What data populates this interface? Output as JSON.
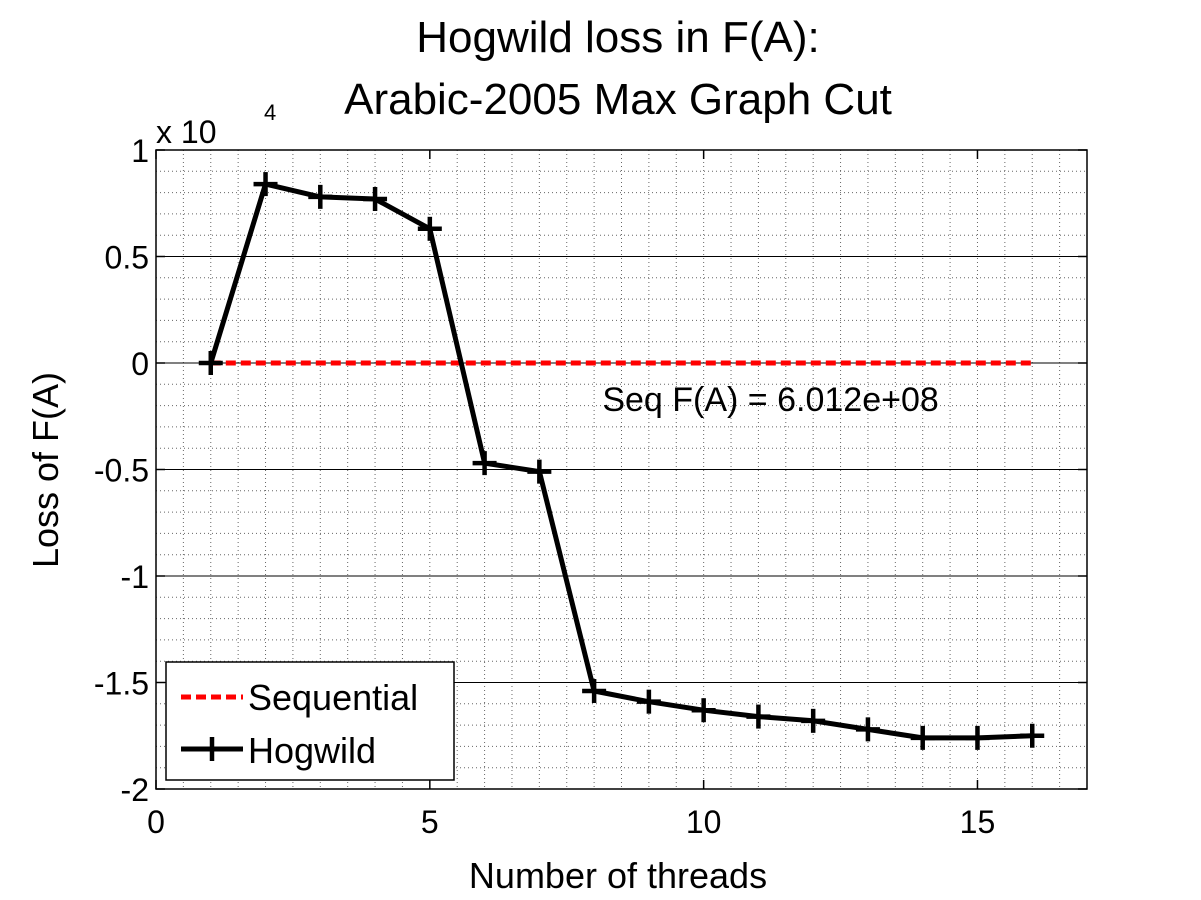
{
  "chart_data": {
    "type": "line",
    "title": [
      "Hogwild loss in F(A):",
      "Arabic-2005 Max Graph Cut"
    ],
    "xlabel": "Number of threads",
    "ylabel": "Loss of F(A)",
    "y_multiplier": {
      "base": "x 10",
      "exponent": "4"
    },
    "xlim": [
      0,
      17
    ],
    "ylim": [
      -2,
      1
    ],
    "xticks": [
      0,
      5,
      10,
      15
    ],
    "xtick_labels": [
      "0",
      "5",
      "10",
      "15"
    ],
    "yticks": [
      -2,
      -1.5,
      -1,
      -0.5,
      0,
      0.5,
      1
    ],
    "ytick_labels": [
      "-2",
      "-1.5",
      "-1",
      "-0.5",
      "0",
      "0.5",
      "1"
    ],
    "grid": true,
    "minor_grid": true,
    "legend_position": "bottom-left",
    "series": [
      {
        "name": "Sequential",
        "color": "#ff0000",
        "line_style": "dashed",
        "marker": "none",
        "x": [
          1,
          16
        ],
        "y": [
          0,
          0
        ]
      },
      {
        "name": "Hogwild",
        "color": "#000000",
        "line_style": "solid",
        "marker": "plus",
        "x": [
          1,
          2,
          3,
          4,
          5,
          6,
          7,
          8,
          9,
          10,
          11,
          12,
          13,
          14,
          15,
          16
        ],
        "y": [
          0,
          0.84,
          0.78,
          0.77,
          0.63,
          -0.47,
          -0.51,
          -1.54,
          -1.59,
          -1.63,
          -1.66,
          -1.68,
          -1.72,
          -1.76,
          -1.76,
          -1.75
        ]
      }
    ],
    "annotations": [
      {
        "text": "Seq F(A) = 6.012e+08",
        "x": 8.15,
        "y": -0.17
      }
    ]
  }
}
